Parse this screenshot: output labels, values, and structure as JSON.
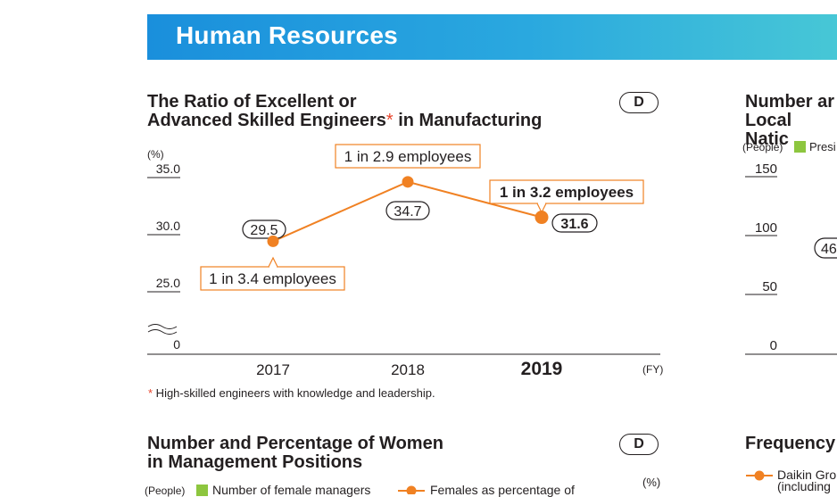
{
  "section": {
    "title": "Human Resources"
  },
  "left_chart": {
    "title_line1": "The Ratio of Excellent or",
    "title_line2": "Advanced Skilled Engineers",
    "title_asterisk": "*",
    "title_line2_end": " in Manufacturing",
    "badge": "D",
    "unit": "(%)",
    "footnote_asterisk": "*",
    "footnote": " High-skilled engineers with knowledge and leadership."
  },
  "right_top_partial": {
    "title_line1": "Number ar",
    "title_line2": "Local Natic",
    "unit": "(People)",
    "legend_label": "Presi",
    "ticks": [
      "150",
      "100",
      "50",
      "0"
    ],
    "value_label": "46"
  },
  "bottom_left": {
    "title_line1": "Number and Percentage of Women",
    "title_line2": "in Management Positions",
    "badge": "D",
    "unit_right": "(%)",
    "unit_left": "(People)",
    "legend_bar": "Number of female managers",
    "legend_line": "Females as percentage of"
  },
  "bottom_right_partial": {
    "title": "Frequency",
    "legend_line1": "Daikin Gro",
    "legend_line2": "(including"
  },
  "chart_data": {
    "type": "line",
    "x": [
      "2017",
      "2018",
      "2019"
    ],
    "series": [
      {
        "values": [
          29.5,
          34.7,
          31.6
        ],
        "value_labels": [
          "29.5",
          "34.7",
          "31.6"
        ],
        "ratio_labels": [
          "1 in 3.4 employees",
          "1 in 2.9 employees",
          "1 in 3.2 employees"
        ]
      }
    ],
    "ylim": [
      25.0,
      35.0
    ],
    "yticks": [
      {
        "value": 35.0,
        "label": "35.0"
      },
      {
        "value": 30.0,
        "label": "30.0"
      },
      {
        "value": 25.0,
        "label": "25.0"
      }
    ],
    "y_zero_label": "0",
    "xlabel": "(FY)",
    "ylabel": "(%)",
    "color": "#f08123",
    "grid": false
  }
}
